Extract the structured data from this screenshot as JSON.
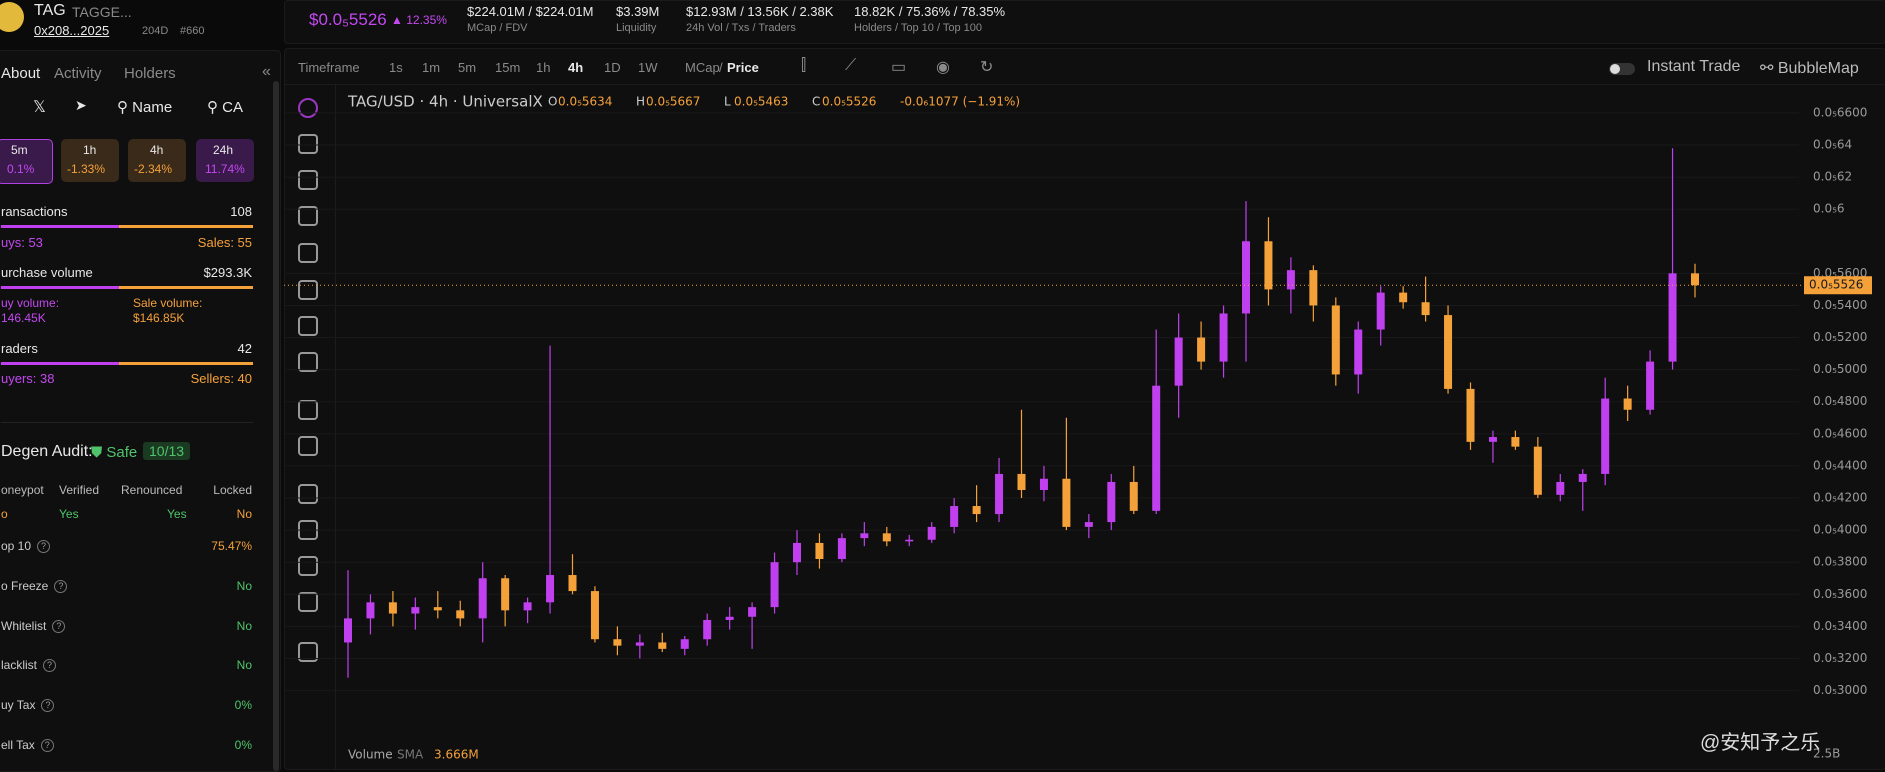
{
  "header": {
    "symbol": "TAG",
    "name": "TAGGE...",
    "address": "0x208...2025",
    "age": "204D",
    "rank": "#660",
    "price": "$0.0₅5526",
    "change": "12.35%",
    "stats": [
      {
        "value": "$224.01M / $224.01M",
        "label": "MCap / FDV"
      },
      {
        "value": "$3.39M",
        "label": "Liquidity"
      },
      {
        "value": "$12.93M / 13.56K / 2.38K",
        "label": "24h Vol / Txs / Traders"
      },
      {
        "value": "18.82K / 75.36% / 78.35%",
        "label": "Holders / Top 10 / Top 100"
      }
    ]
  },
  "sidebar": {
    "tabs": [
      "About",
      "Activity",
      "Holders"
    ],
    "search": [
      "Name",
      "CA"
    ],
    "periods": [
      {
        "label": "5m",
        "change": "0.1%"
      },
      {
        "label": "1h",
        "change": "-1.33%"
      },
      {
        "label": "4h",
        "change": "-2.34%"
      },
      {
        "label": "24h",
        "change": "11.74%"
      }
    ],
    "transactions": {
      "label": "ransactions",
      "value": "108",
      "buys": "uys: 53",
      "sales": "Sales: 55"
    },
    "volume": {
      "label": "urchase volume",
      "value": "$293.3K",
      "buy_label": "uy volume:",
      "buy_value": "146.45K",
      "sale_label": "Sale volume:",
      "sale_value": "$146.85K"
    },
    "traders": {
      "label": "raders",
      "value": "42",
      "buyers": "uyers: 38",
      "sellers": "Sellers: 40"
    },
    "audit": {
      "title": "Degen Audit:",
      "status": "Safe",
      "score": "10/13",
      "headers": [
        "oneypot",
        "Verified",
        "Renounced",
        "Locked"
      ],
      "values": [
        "o",
        "Yes",
        "Yes",
        "No"
      ],
      "rows": [
        {
          "label": "op 10",
          "value": "75.47%"
        },
        {
          "label": "o Freeze",
          "value": "No"
        },
        {
          "label": "Whitelist",
          "value": "No"
        },
        {
          "label": "lacklist",
          "value": "No"
        },
        {
          "label": "uy Tax",
          "value": "0%"
        },
        {
          "label": "ell Tax",
          "value": "0%"
        }
      ]
    }
  },
  "toolbar": {
    "timeframe": "Timeframe",
    "intervals": [
      "1s",
      "1m",
      "5m",
      "15m",
      "1h",
      "4h",
      "1D",
      "1W"
    ],
    "mcap": "MCap",
    "slash": "/",
    "price": "Price",
    "instant": "Instant Trade",
    "bubble": "BubbleMap"
  },
  "chart_data": {
    "type": "candlestick",
    "title": "TAG/USD · 4h · UniversalX",
    "ohlc": [
      {
        "key": "O",
        "value": "0.0₅5634"
      },
      {
        "key": "H",
        "value": "0.0₅5667"
      },
      {
        "key": "L",
        "value": "0.0₅5463"
      },
      {
        "key": "C",
        "value": "0.0₅5526"
      }
    ],
    "change": "-0.0₆1077 (−1.91%)",
    "up_color": "#c040f0",
    "down_color": "#f5a13a",
    "grid": true,
    "ylim": [
      2.53e-06,
      6.78e-06
    ],
    "yticks": [
      {
        "value": 6.6e-06,
        "label": "0.0₅6600"
      },
      {
        "value": 6.4e-06,
        "label": "0.0₅64"
      },
      {
        "value": 6.2e-06,
        "label": "0.0₅62"
      },
      {
        "value": 6e-06,
        "label": "0.0₅6"
      },
      {
        "value": 5.6e-06,
        "label": "0.0₅5600"
      },
      {
        "value": 5.4e-06,
        "label": "0.0₅5400"
      },
      {
        "value": 5.2e-06,
        "label": "0.0₅5200"
      },
      {
        "value": 5e-06,
        "label": "0.0₅5000"
      },
      {
        "value": 4.8e-06,
        "label": "0.0₅4800"
      },
      {
        "value": 4.6e-06,
        "label": "0.0₅4600"
      },
      {
        "value": 4.4e-06,
        "label": "0.0₅4400"
      },
      {
        "value": 4.2e-06,
        "label": "0.0₅4200"
      },
      {
        "value": 4e-06,
        "label": "0.0₅4000"
      },
      {
        "value": 3.8e-06,
        "label": "0.0₅3800"
      },
      {
        "value": 3.6e-06,
        "label": "0.0₅3600"
      },
      {
        "value": 3.4e-06,
        "label": "0.0₅3400"
      },
      {
        "value": 3.2e-06,
        "label": "0.0₅3200"
      },
      {
        "value": 3e-06,
        "label": "0.0₅3000"
      }
    ],
    "last_price": {
      "value": 5.526e-06,
      "label": "0.0₅5526"
    },
    "volume": {
      "label": "Volume",
      "sma": "SMA",
      "value": "3.666M",
      "axis_label": "2.5B"
    },
    "candles": [
      {
        "open": 3.3e-06,
        "high": 3.75e-06,
        "low": 3.08e-06,
        "close": 3.45e-06
      },
      {
        "open": 3.45e-06,
        "high": 3.6e-06,
        "low": 3.35e-06,
        "close": 3.55e-06
      },
      {
        "open": 3.55e-06,
        "high": 3.62e-06,
        "low": 3.4e-06,
        "close": 3.48e-06
      },
      {
        "open": 3.48e-06,
        "high": 3.58e-06,
        "low": 3.38e-06,
        "close": 3.52e-06
      },
      {
        "open": 3.52e-06,
        "high": 3.62e-06,
        "low": 3.45e-06,
        "close": 3.5e-06
      },
      {
        "open": 3.5e-06,
        "high": 3.56e-06,
        "low": 3.4e-06,
        "close": 3.45e-06
      },
      {
        "open": 3.45e-06,
        "high": 3.8e-06,
        "low": 3.3e-06,
        "close": 3.7e-06
      },
      {
        "open": 3.7e-06,
        "high": 3.72e-06,
        "low": 3.4e-06,
        "close": 3.5e-06
      },
      {
        "open": 3.5e-06,
        "high": 3.58e-06,
        "low": 3.42e-06,
        "close": 3.55e-06
      },
      {
        "open": 3.55e-06,
        "high": 5.15e-06,
        "low": 3.48e-06,
        "close": 3.72e-06
      },
      {
        "open": 3.72e-06,
        "high": 3.85e-06,
        "low": 3.6e-06,
        "close": 3.62e-06
      },
      {
        "open": 3.62e-06,
        "high": 3.65e-06,
        "low": 3.3e-06,
        "close": 3.32e-06
      },
      {
        "open": 3.32e-06,
        "high": 3.4e-06,
        "low": 3.22e-06,
        "close": 3.28e-06
      },
      {
        "open": 3.28e-06,
        "high": 3.35e-06,
        "low": 3.2e-06,
        "close": 3.3e-06
      },
      {
        "open": 3.3e-06,
        "high": 3.36e-06,
        "low": 3.24e-06,
        "close": 3.26e-06
      },
      {
        "open": 3.26e-06,
        "high": 3.34e-06,
        "low": 3.22e-06,
        "close": 3.32e-06
      },
      {
        "open": 3.32e-06,
        "high": 3.48e-06,
        "low": 3.28e-06,
        "close": 3.44e-06
      },
      {
        "open": 3.44e-06,
        "high": 3.52e-06,
        "low": 3.38e-06,
        "close": 3.46e-06
      },
      {
        "open": 3.46e-06,
        "high": 3.55e-06,
        "low": 3.26e-06,
        "close": 3.52e-06
      },
      {
        "open": 3.52e-06,
        "high": 3.86e-06,
        "low": 3.48e-06,
        "close": 3.8e-06
      },
      {
        "open": 3.8e-06,
        "high": 4e-06,
        "low": 3.72e-06,
        "close": 3.92e-06
      },
      {
        "open": 3.92e-06,
        "high": 3.98e-06,
        "low": 3.76e-06,
        "close": 3.82e-06
      },
      {
        "open": 3.82e-06,
        "high": 3.98e-06,
        "low": 3.8e-06,
        "close": 3.95e-06
      },
      {
        "open": 3.95e-06,
        "high": 4.05e-06,
        "low": 3.9e-06,
        "close": 3.98e-06
      },
      {
        "open": 3.98e-06,
        "high": 4.02e-06,
        "low": 3.9e-06,
        "close": 3.93e-06
      },
      {
        "open": 3.93e-06,
        "high": 3.97e-06,
        "low": 3.9e-06,
        "close": 3.94e-06
      },
      {
        "open": 3.94e-06,
        "high": 4.05e-06,
        "low": 3.92e-06,
        "close": 4.02e-06
      },
      {
        "open": 4.02e-06,
        "high": 4.2e-06,
        "low": 3.98e-06,
        "close": 4.15e-06
      },
      {
        "open": 4.15e-06,
        "high": 4.28e-06,
        "low": 4.05e-06,
        "close": 4.1e-06
      },
      {
        "open": 4.1e-06,
        "high": 4.45e-06,
        "low": 4.05e-06,
        "close": 4.35e-06
      },
      {
        "open": 4.35e-06,
        "high": 4.75e-06,
        "low": 4.2e-06,
        "close": 4.25e-06
      },
      {
        "open": 4.25e-06,
        "high": 4.4e-06,
        "low": 4.18e-06,
        "close": 4.32e-06
      },
      {
        "open": 4.32e-06,
        "high": 4.7e-06,
        "low": 4e-06,
        "close": 4.02e-06
      },
      {
        "open": 4.02e-06,
        "high": 4.1e-06,
        "low": 3.95e-06,
        "close": 4.05e-06
      },
      {
        "open": 4.05e-06,
        "high": 4.35e-06,
        "low": 4e-06,
        "close": 4.3e-06
      },
      {
        "open": 4.3e-06,
        "high": 4.4e-06,
        "low": 4.1e-06,
        "close": 4.12e-06
      },
      {
        "open": 4.12e-06,
        "high": 5.25e-06,
        "low": 4.1e-06,
        "close": 4.9e-06
      },
      {
        "open": 4.9e-06,
        "high": 5.35e-06,
        "low": 4.7e-06,
        "close": 5.2e-06
      },
      {
        "open": 5.2e-06,
        "high": 5.3e-06,
        "low": 5e-06,
        "close": 5.05e-06
      },
      {
        "open": 5.05e-06,
        "high": 5.4e-06,
        "low": 4.95e-06,
        "close": 5.35e-06
      },
      {
        "open": 5.35e-06,
        "high": 6.05e-06,
        "low": 5.05e-06,
        "close": 5.8e-06
      },
      {
        "open": 5.8e-06,
        "high": 5.95e-06,
        "low": 5.4e-06,
        "close": 5.5e-06
      },
      {
        "open": 5.5e-06,
        "high": 5.7e-06,
        "low": 5.35e-06,
        "close": 5.62e-06
      },
      {
        "open": 5.62e-06,
        "high": 5.65e-06,
        "low": 5.3e-06,
        "close": 5.4e-06
      },
      {
        "open": 5.4e-06,
        "high": 5.45e-06,
        "low": 4.9e-06,
        "close": 4.97e-06
      },
      {
        "open": 4.97e-06,
        "high": 5.3e-06,
        "low": 4.85e-06,
        "close": 5.25e-06
      },
      {
        "open": 5.25e-06,
        "high": 5.52e-06,
        "low": 5.15e-06,
        "close": 5.48e-06
      },
      {
        "open": 5.48e-06,
        "high": 5.52e-06,
        "low": 5.38e-06,
        "close": 5.42e-06
      },
      {
        "open": 5.42e-06,
        "high": 5.58e-06,
        "low": 5.3e-06,
        "close": 5.34e-06
      },
      {
        "open": 5.34e-06,
        "high": 5.4e-06,
        "low": 4.85e-06,
        "close": 4.88e-06
      },
      {
        "open": 4.88e-06,
        "high": 4.92e-06,
        "low": 4.5e-06,
        "close": 4.55e-06
      },
      {
        "open": 4.55e-06,
        "high": 4.62e-06,
        "low": 4.42e-06,
        "close": 4.58e-06
      },
      {
        "open": 4.58e-06,
        "high": 4.62e-06,
        "low": 4.5e-06,
        "close": 4.52e-06
      },
      {
        "open": 4.52e-06,
        "high": 4.58e-06,
        "low": 4.2e-06,
        "close": 4.22e-06
      },
      {
        "open": 4.22e-06,
        "high": 4.35e-06,
        "low": 4.18e-06,
        "close": 4.3e-06
      },
      {
        "open": 4.3e-06,
        "high": 4.38e-06,
        "low": 4.12e-06,
        "close": 4.35e-06
      },
      {
        "open": 4.35e-06,
        "high": 4.95e-06,
        "low": 4.28e-06,
        "close": 4.82e-06
      },
      {
        "open": 4.82e-06,
        "high": 4.9e-06,
        "low": 4.68e-06,
        "close": 4.75e-06
      },
      {
        "open": 4.75e-06,
        "high": 5.12e-06,
        "low": 4.72e-06,
        "close": 5.05e-06
      },
      {
        "open": 5.05e-06,
        "high": 6.38e-06,
        "low": 5e-06,
        "close": 5.6e-06
      },
      {
        "open": 5.6e-06,
        "high": 5.66e-06,
        "low": 5.45e-06,
        "close": 5.526e-06
      }
    ]
  },
  "watermark": "@安知予之乐"
}
